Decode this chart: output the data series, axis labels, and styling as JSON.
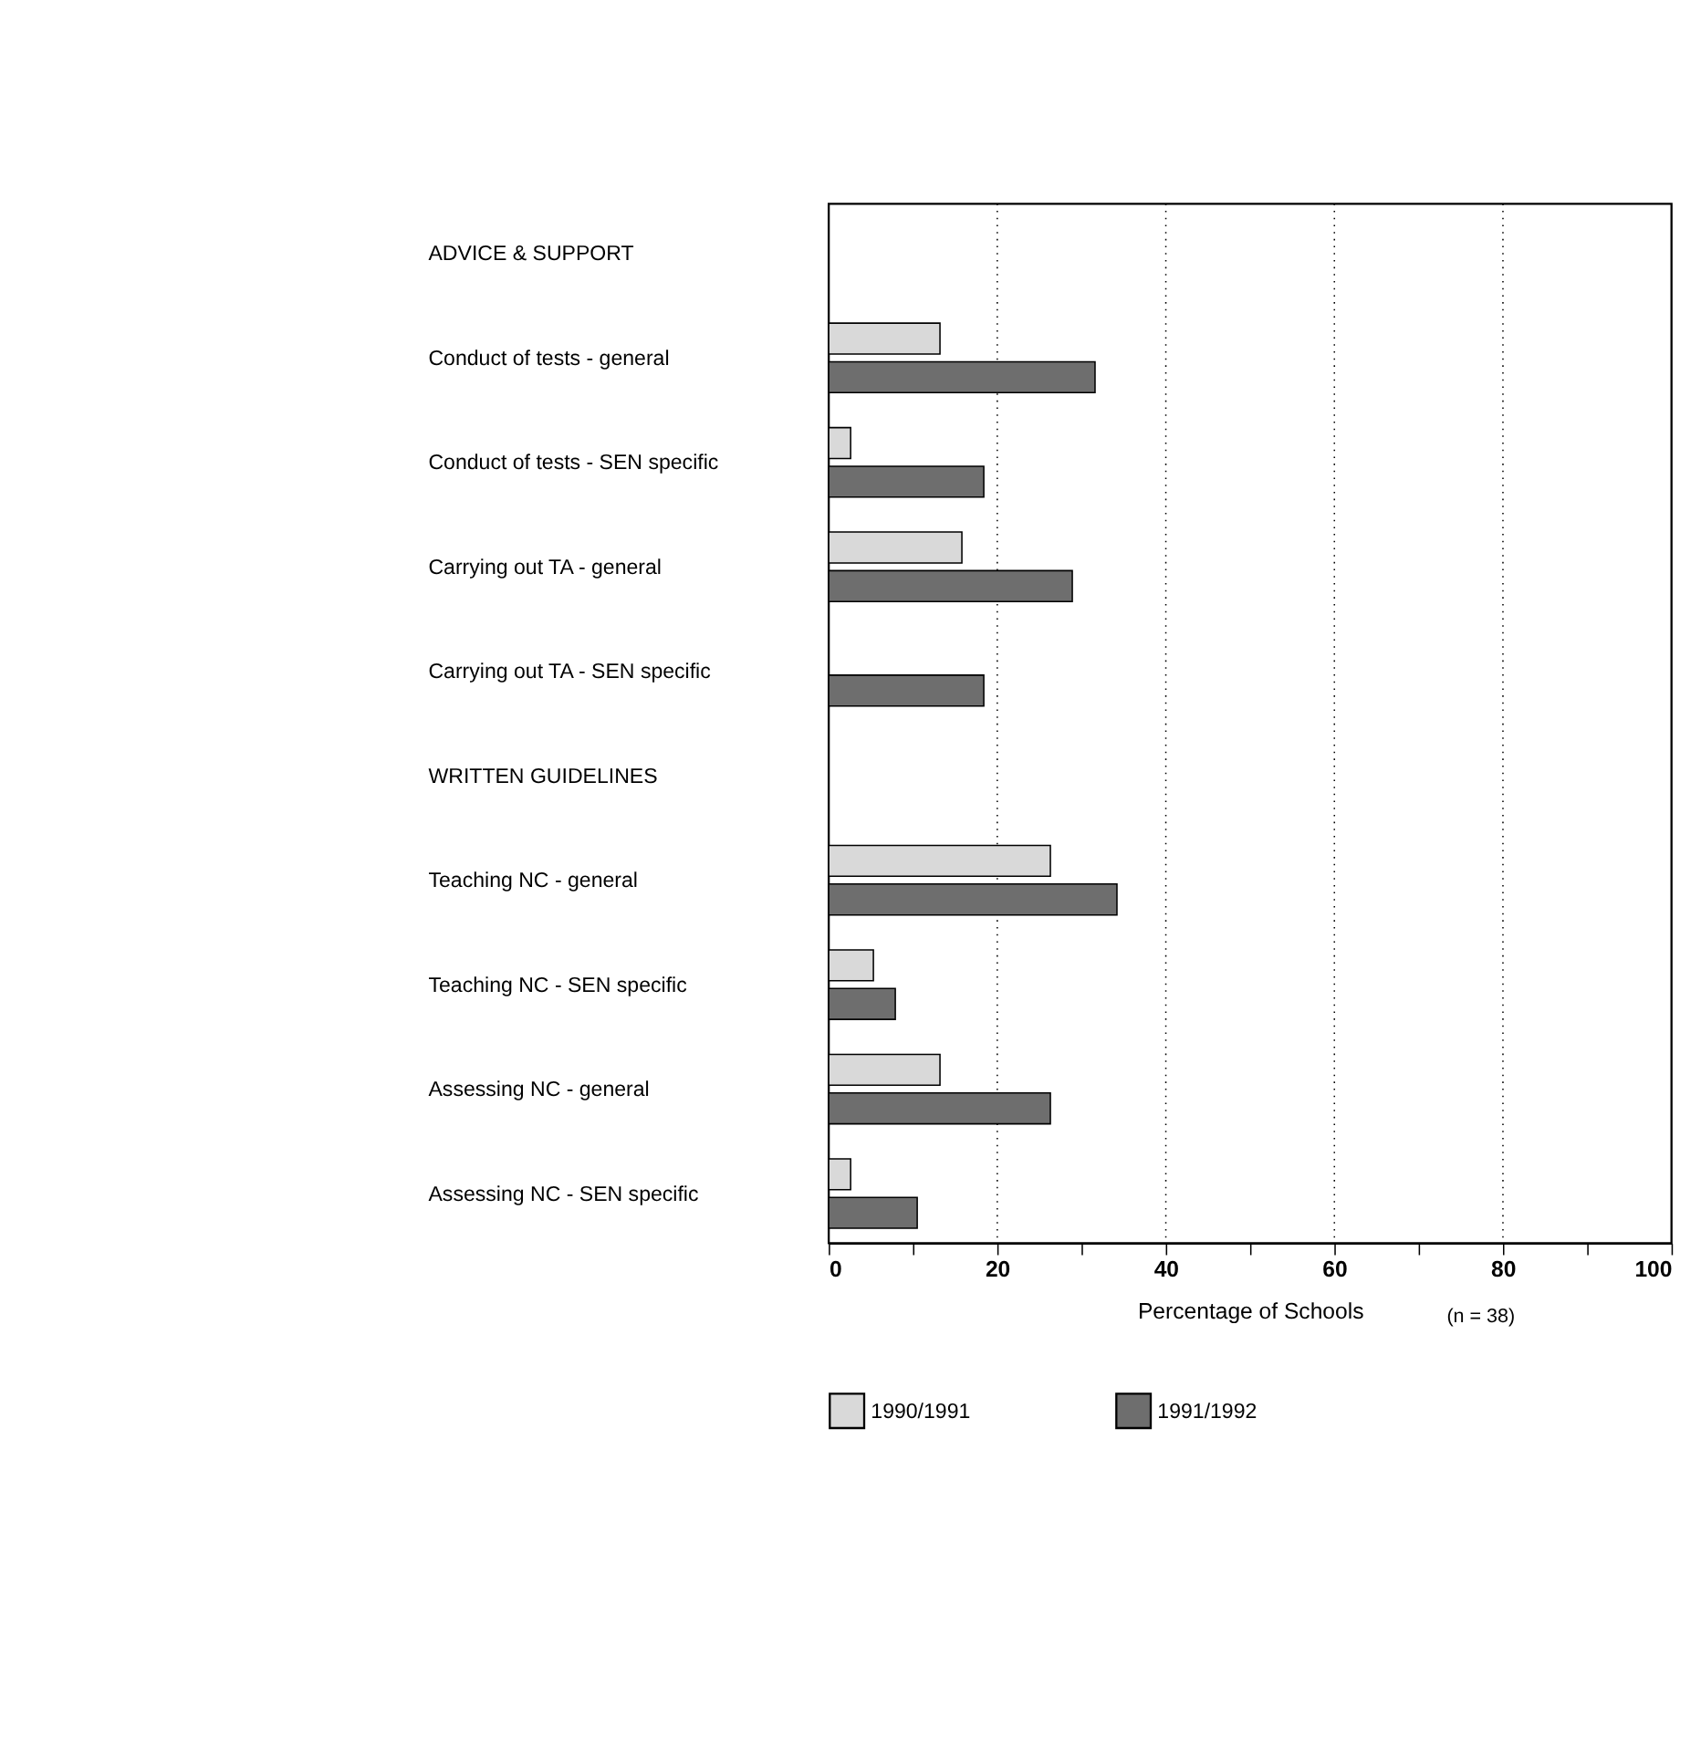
{
  "chart_data": {
    "type": "bar",
    "orientation": "horizontal",
    "xlabel": "Percentage of Schools",
    "annotations": [
      "(n = 38)"
    ],
    "categories": [
      "ADVICE & SUPPORT",
      "Conduct of tests - general",
      "Conduct of tests - SEN specific",
      "Carrying out TA - general",
      "Carrying out TA - SEN specific",
      "WRITTEN GUIDELINES",
      "Teaching NC - general",
      "Teaching NC - SEN specific",
      "Assessing NC - general",
      "Assessing NC - SEN specific"
    ],
    "series": [
      {
        "name": "1990/1991",
        "color": "#d9d9d9",
        "values": [
          null,
          13.2,
          2.6,
          15.8,
          null,
          null,
          26.3,
          5.3,
          13.2,
          2.6
        ]
      },
      {
        "name": "1991/1992",
        "color": "#6e6e6e",
        "values": [
          null,
          31.6,
          18.4,
          28.9,
          18.4,
          null,
          34.2,
          7.9,
          26.3,
          10.5
        ]
      }
    ],
    "xlim": [
      0,
      100
    ],
    "xticks": [
      0,
      {
        "value": 10,
        "label": null
      },
      20,
      {
        "value": 30,
        "label": null
      },
      40,
      {
        "value": 50,
        "label": null
      },
      60,
      {
        "value": 70,
        "label": null
      },
      80,
      {
        "value": 90,
        "label": null
      },
      100
    ],
    "grid": "x",
    "legend": "bottom"
  }
}
